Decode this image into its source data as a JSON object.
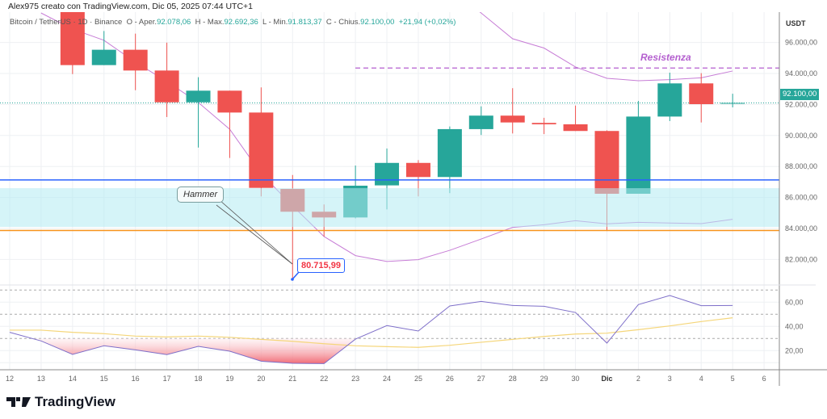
{
  "header": {
    "text": "Alex975 creato con TradingView.com, Dic 05, 2025 07:44 UTC+1"
  },
  "legend": {
    "symbol": "Bitcoin / TetherUS",
    "interval": "1D",
    "exchange": "Binance",
    "open_label": "O - Aper.",
    "open": "92.078,06",
    "high_label": "H - Max.",
    "high": "92.692,36",
    "low_label": "L - Min.",
    "low": "91.813,37",
    "close_label": "C - Chius.",
    "close": "92.100,00",
    "change": "+21,94 (+0,02%)"
  },
  "price_axis": {
    "currency": "USDT",
    "current_price_label": "92.100,00"
  },
  "annotations": {
    "hammer": "Hammer",
    "low_price": "80.715,99",
    "resistance": "Resistenza"
  },
  "branding": {
    "logo_text": "TradingView"
  },
  "colors": {
    "up": "#26a69a",
    "down": "#ef5350",
    "band": "#c77dd6",
    "rsi": "#7e6fc9",
    "rsi_ma": "#f5d67a",
    "support_blue": "#2962ff",
    "support_orange": "#f7931a",
    "zone": "#b2ebf2",
    "resistance": "#b45fcf"
  },
  "chart_data": [
    {
      "type": "candlestick",
      "title": "Bitcoin / TetherUS 1D Binance",
      "x_tick_labels": [
        "12",
        "13",
        "14",
        "15",
        "16",
        "17",
        "18",
        "19",
        "20",
        "21",
        "22",
        "23",
        "24",
        "25",
        "26",
        "27",
        "28",
        "29",
        "30",
        "Dic",
        "2",
        "3",
        "4",
        "5",
        "6"
      ],
      "y_tick_labels": [
        "96.000,00",
        "94.000,00",
        "92.000,00",
        "90.000,00",
        "88.000,00",
        "86.000,00",
        "84.000,00",
        "82.000,00"
      ],
      "ylim": [
        80500,
        97800
      ],
      "candles": [
        {
          "day": "14",
          "o": 98000,
          "h": 98500,
          "l": 93960,
          "c": 94540
        },
        {
          "day": "15",
          "o": 94540,
          "h": 96740,
          "l": 94540,
          "c": 95530
        },
        {
          "day": "16",
          "o": 95530,
          "h": 96570,
          "l": 92920,
          "c": 94190
        },
        {
          "day": "17",
          "o": 94190,
          "h": 95990,
          "l": 91190,
          "c": 92140
        },
        {
          "day": "18",
          "o": 92140,
          "h": 93760,
          "l": 89220,
          "c": 92890
        },
        {
          "day": "19",
          "o": 92890,
          "h": 92890,
          "l": 88550,
          "c": 91480
        },
        {
          "day": "20",
          "o": 91480,
          "h": 93100,
          "l": 86070,
          "c": 86620
        },
        {
          "day": "21",
          "o": 86550,
          "h": 87450,
          "l": 80716,
          "c": 85080
        },
        {
          "day": "22",
          "o": 85080,
          "h": 85550,
          "l": 83480,
          "c": 84710
        },
        {
          "day": "23",
          "o": 84710,
          "h": 88060,
          "l": 84650,
          "c": 86760
        },
        {
          "day": "24",
          "o": 86780,
          "h": 89160,
          "l": 85230,
          "c": 88230
        },
        {
          "day": "25",
          "o": 88230,
          "h": 88410,
          "l": 86070,
          "c": 87320
        },
        {
          "day": "26",
          "o": 87320,
          "h": 90580,
          "l": 86280,
          "c": 90410
        },
        {
          "day": "27",
          "o": 90410,
          "h": 91880,
          "l": 90030,
          "c": 91280
        },
        {
          "day": "28",
          "o": 91280,
          "h": 93050,
          "l": 90130,
          "c": 90840
        },
        {
          "day": "29",
          "o": 90810,
          "h": 91140,
          "l": 90090,
          "c": 90720
        },
        {
          "day": "30",
          "o": 90720,
          "h": 91930,
          "l": 90290,
          "c": 90290
        },
        {
          "day": "Dic",
          "o": 90290,
          "h": 90330,
          "l": 83840,
          "c": 86240
        },
        {
          "day": "2",
          "o": 86240,
          "h": 92230,
          "l": 86240,
          "c": 91220
        },
        {
          "day": "3",
          "o": 91220,
          "h": 94050,
          "l": 90930,
          "c": 93360
        },
        {
          "day": "4",
          "o": 93360,
          "h": 94020,
          "l": 90840,
          "c": 92020
        },
        {
          "day": "5",
          "o": 92078.06,
          "h": 92692.36,
          "l": 91813.37,
          "c": 92100.0
        }
      ],
      "upper_band": {
        "days": [
          "26",
          "27",
          "28",
          "29",
          "30",
          "Dic",
          "2",
          "3",
          "4",
          "5"
        ],
        "values": [
          99500,
          97900,
          96240,
          95640,
          94420,
          93690,
          93530,
          93600,
          93720,
          94160
        ]
      },
      "lower_band": {
        "days": [
          "13",
          "14",
          "15",
          "16",
          "17",
          "18",
          "19",
          "20",
          "21",
          "22",
          "23",
          "24",
          "25",
          "26",
          "27",
          "28",
          "29",
          "30",
          "Dic",
          "2",
          "3",
          "4",
          "5"
        ],
        "values": [
          97900,
          96860,
          96140,
          94730,
          93480,
          92130,
          90400,
          87540,
          85460,
          83480,
          82250,
          81870,
          81990,
          82590,
          83320,
          84070,
          84240,
          84500,
          84300,
          84400,
          84350,
          84310,
          84590
        ]
      },
      "levels": {
        "resistance": 94350,
        "support_blue": 87130,
        "support_orange": 83870,
        "zone": [
          84100,
          86600
        ],
        "current": 92100
      }
    },
    {
      "type": "line",
      "y_tick_labels": [
        "60,00",
        "40,00",
        "20,00"
      ],
      "ylim": [
        0,
        75
      ],
      "bands": [
        70,
        50,
        30
      ],
      "days": [
        "12",
        "13",
        "14",
        "15",
        "16",
        "17",
        "18",
        "19",
        "20",
        "21",
        "22",
        "23",
        "24",
        "25",
        "26",
        "27",
        "28",
        "29",
        "30",
        "Dic",
        "2",
        "3",
        "4",
        "5"
      ],
      "rsi": [
        35.1,
        28,
        16.9,
        24,
        20.6,
        16.7,
        23.5,
        19.5,
        11.3,
        9.5,
        9.3,
        29.5,
        40.7,
        36.2,
        56.9,
        60.6,
        57.3,
        56.6,
        51.5,
        26.2,
        58,
        65.5,
        57.1,
        57.3
      ],
      "rsi_ma": [
        36.9,
        36.9,
        35.1,
        34,
        32,
        31.3,
        32,
        31,
        29.3,
        27.7,
        25.7,
        24,
        23.3,
        22.7,
        24.4,
        26.9,
        29.3,
        31.7,
        33.7,
        34.4,
        37.3,
        40.4,
        44,
        47.1
      ]
    }
  ]
}
